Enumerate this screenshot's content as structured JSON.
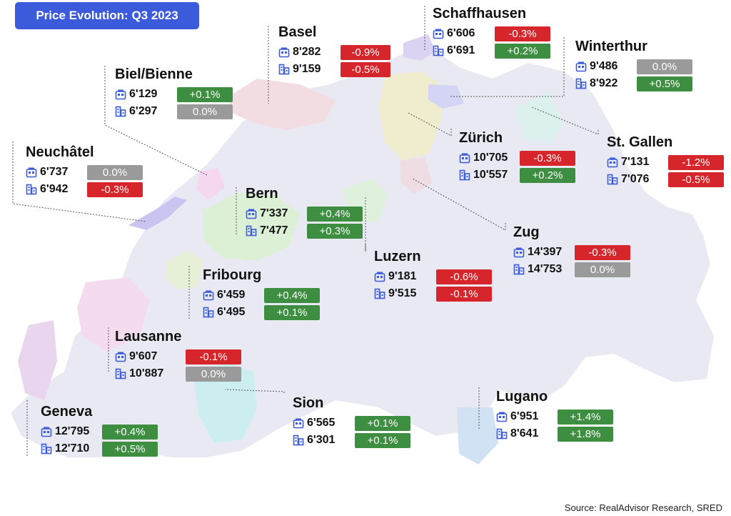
{
  "title": "Price Evolution: Q3 2023",
  "source": "Source: RealAdvisor Research, SRED",
  "icons": {
    "apartment": "apartment-icon",
    "house": "building-icon"
  },
  "colors": {
    "positive": "#3e8e41",
    "negative": "#d6262b",
    "neutral": "#9a9a9a",
    "badge": "#3b5bdb",
    "map": "#e9e9f3",
    "icon": "#3b5bdb"
  },
  "cities": [
    {
      "id": "basel",
      "name": "Basel",
      "rows": [
        {
          "price": "8'282",
          "change": "-0.9%"
        },
        {
          "price": "9'159",
          "change": "-0.5%"
        }
      ]
    },
    {
      "id": "schaffhausen",
      "name": "Schaffhausen",
      "rows": [
        {
          "price": "6'606",
          "change": "-0.3%"
        },
        {
          "price": "6'691",
          "change": "+0.2%"
        }
      ]
    },
    {
      "id": "winterthur",
      "name": "Winterthur",
      "rows": [
        {
          "price": "9'486",
          "change": "0.0%"
        },
        {
          "price": "8'922",
          "change": "+0.5%"
        }
      ]
    },
    {
      "id": "biel",
      "name": "Biel/Bienne",
      "rows": [
        {
          "price": "6'129",
          "change": "+0.1%"
        },
        {
          "price": "6'297",
          "change": "0.0%"
        }
      ]
    },
    {
      "id": "zurich",
      "name": "Zürich",
      "rows": [
        {
          "price": "10'705",
          "change": "-0.3%"
        },
        {
          "price": "10'557",
          "change": "+0.2%"
        }
      ]
    },
    {
      "id": "stgallen",
      "name": "St. Gallen",
      "rows": [
        {
          "price": "7'131",
          "change": "-1.2%"
        },
        {
          "price": "7'076",
          "change": "-0.5%"
        }
      ]
    },
    {
      "id": "neuchatel",
      "name": "Neuchâtel",
      "rows": [
        {
          "price": "6'737",
          "change": "0.0%"
        },
        {
          "price": "6'942",
          "change": "-0.3%"
        }
      ]
    },
    {
      "id": "bern",
      "name": "Bern",
      "rows": [
        {
          "price": "7'337",
          "change": "+0.4%"
        },
        {
          "price": "7'477",
          "change": "+0.3%"
        }
      ]
    },
    {
      "id": "zug",
      "name": "Zug",
      "rows": [
        {
          "price": "14'397",
          "change": "-0.3%"
        },
        {
          "price": "14'753",
          "change": "0.0%"
        }
      ]
    },
    {
      "id": "luzern",
      "name": "Luzern",
      "rows": [
        {
          "price": "9'181",
          "change": "-0.6%"
        },
        {
          "price": "9'515",
          "change": "-0.1%"
        }
      ]
    },
    {
      "id": "fribourg",
      "name": "Fribourg",
      "rows": [
        {
          "price": "6'459",
          "change": "+0.4%"
        },
        {
          "price": "6'495",
          "change": "+0.1%"
        }
      ]
    },
    {
      "id": "lausanne",
      "name": "Lausanne",
      "rows": [
        {
          "price": "9'607",
          "change": "-0.1%"
        },
        {
          "price": "10'887",
          "change": "0.0%"
        }
      ]
    },
    {
      "id": "sion",
      "name": "Sion",
      "rows": [
        {
          "price": "6'565",
          "change": "+0.1%"
        },
        {
          "price": "6'301",
          "change": "+0.1%"
        }
      ]
    },
    {
      "id": "lugano",
      "name": "Lugano",
      "rows": [
        {
          "price": "6'951",
          "change": "+1.4%"
        },
        {
          "price": "8'641",
          "change": "+1.8%"
        }
      ]
    },
    {
      "id": "geneva",
      "name": "Geneva",
      "rows": [
        {
          "price": "12'795",
          "change": "+0.4%"
        },
        {
          "price": "12'710",
          "change": "+0.5%"
        }
      ]
    }
  ]
}
